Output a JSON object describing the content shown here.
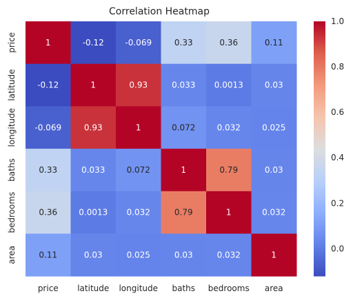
{
  "chart_data": {
    "type": "heatmap",
    "title": "Correlation Heatmap",
    "xlabel": "",
    "ylabel": "",
    "x_categories": [
      "price",
      "latitude",
      "longitude",
      "baths",
      "bedrooms",
      "area"
    ],
    "y_categories": [
      "price",
      "latitude",
      "longitude",
      "baths",
      "bedrooms",
      "area"
    ],
    "values": [
      [
        1,
        -0.12,
        -0.069,
        0.33,
        0.36,
        0.11
      ],
      [
        -0.12,
        1,
        0.93,
        0.033,
        0.0013,
        0.03
      ],
      [
        -0.069,
        0.93,
        1,
        0.072,
        0.032,
        0.025
      ],
      [
        0.33,
        0.033,
        0.072,
        1,
        0.79,
        0.03
      ],
      [
        0.36,
        0.0013,
        0.032,
        0.79,
        1,
        0.032
      ],
      [
        0.11,
        0.03,
        0.025,
        0.03,
        0.032,
        1
      ]
    ],
    "cell_labels": [
      [
        "1",
        "-0.12",
        "-0.069",
        "0.33",
        "0.36",
        "0.11"
      ],
      [
        "-0.12",
        "1",
        "0.93",
        "0.033",
        "0.0013",
        "0.03"
      ],
      [
        "-0.069",
        "0.93",
        "1",
        "0.072",
        "0.032",
        "0.025"
      ],
      [
        "0.33",
        "0.033",
        "0.072",
        "1",
        "0.79",
        "0.03"
      ],
      [
        "0.36",
        "0.0013",
        "0.032",
        "0.79",
        "1",
        "0.032"
      ],
      [
        "0.11",
        "0.03",
        "0.025",
        "0.03",
        "0.032",
        "1"
      ]
    ],
    "colorbar": {
      "colormap": "coolwarm",
      "range": [
        -0.12,
        1.0
      ],
      "ticks": [
        0.0,
        0.2,
        0.4,
        0.6,
        0.8,
        1.0
      ],
      "tick_labels": [
        "0.0",
        "0.2",
        "0.4",
        "0.6",
        "0.8",
        "1.0"
      ],
      "placement": "right"
    },
    "grid": false,
    "colors": {
      "low": "#3b4cc0",
      "mid": "#dddddd",
      "high": "#b40426"
    }
  }
}
